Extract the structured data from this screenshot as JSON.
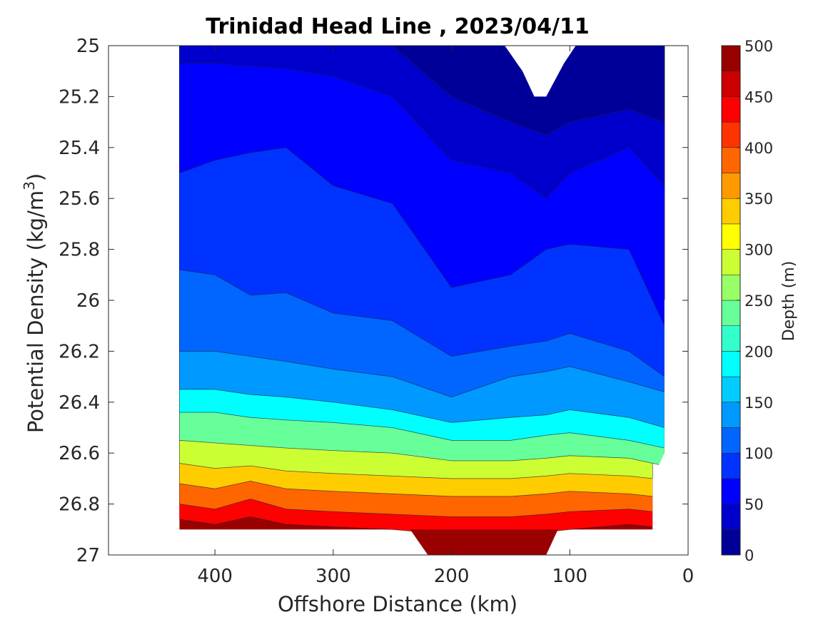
{
  "chart_data": {
    "type": "contour",
    "title": "Trinidad Head Line , 2023/04/11",
    "xlabel": "Offshore Distance (km)",
    "ylabel": "Potential Density (kg/m",
    "ylabel_superscript": "3",
    "ylabel_suffix": ")",
    "xlim": [
      490,
      0
    ],
    "xlim_reversed": true,
    "ylim": [
      25,
      27
    ],
    "ylim_reversed": true,
    "x_ticks": [
      400,
      300,
      200,
      100,
      0
    ],
    "y_ticks": [
      25,
      25.2,
      25.4,
      25.6,
      25.8,
      26,
      26.2,
      26.4,
      26.6,
      26.8,
      27
    ],
    "y_tick_labels": [
      "25",
      "25.2",
      "25.4",
      "25.6",
      "25.8",
      "26",
      "26.2",
      "26.4",
      "26.6",
      "26.8",
      "27"
    ],
    "colorbar": {
      "label": "Depth (m)",
      "min": 0,
      "max": 500,
      "step": 25,
      "ticks": [
        0,
        50,
        100,
        150,
        200,
        250,
        300,
        350,
        400,
        450,
        500
      ],
      "colormap": "jet"
    },
    "series": [
      {
        "name": "Depth contour 25 m",
        "value": 25,
        "x": [
          430,
          400,
          370,
          340,
          300,
          250,
          200,
          150,
          120,
          100,
          50,
          20
        ],
        "y": [
          25.0,
          25.0,
          25.0,
          25.0,
          25.0,
          25.0,
          25.2,
          25.3,
          25.35,
          25.3,
          25.25,
          25.3
        ]
      },
      {
        "name": "Depth contour 50 m",
        "value": 50,
        "x": [
          430,
          400,
          370,
          340,
          300,
          250,
          200,
          150,
          120,
          100,
          50,
          20
        ],
        "y": [
          25.07,
          25.07,
          25.08,
          25.09,
          25.12,
          25.2,
          25.45,
          25.5,
          25.6,
          25.5,
          25.4,
          25.55
        ]
      },
      {
        "name": "Depth contour 75 m",
        "value": 75,
        "x": [
          430,
          400,
          370,
          340,
          300,
          250,
          200,
          150,
          120,
          100,
          50,
          20
        ],
        "y": [
          25.5,
          25.45,
          25.42,
          25.4,
          25.55,
          25.62,
          25.95,
          25.9,
          25.8,
          25.78,
          25.8,
          26.1
        ]
      },
      {
        "name": "Depth contour 100 m",
        "value": 100,
        "x": [
          430,
          400,
          370,
          340,
          300,
          250,
          200,
          150,
          120,
          100,
          50,
          20
        ],
        "y": [
          25.88,
          25.9,
          25.98,
          25.97,
          26.05,
          26.08,
          26.22,
          26.18,
          26.16,
          26.13,
          26.2,
          26.3
        ]
      },
      {
        "name": "Depth contour 125 m",
        "value": 125,
        "x": [
          430,
          400,
          370,
          340,
          300,
          250,
          200,
          150,
          120,
          100,
          50,
          20
        ],
        "y": [
          26.2,
          26.2,
          26.22,
          26.24,
          26.27,
          26.3,
          26.38,
          26.3,
          26.28,
          26.26,
          26.32,
          26.36
        ]
      },
      {
        "name": "Depth contour 150 m",
        "value": 150,
        "x": [
          430,
          400,
          370,
          340,
          300,
          250,
          200,
          150,
          120,
          100,
          50,
          20
        ],
        "y": [
          26.35,
          26.35,
          26.37,
          26.38,
          26.4,
          26.43,
          26.48,
          26.46,
          26.45,
          26.43,
          26.46,
          26.5
        ]
      },
      {
        "name": "Depth contour 200 m",
        "value": 200,
        "x": [
          430,
          400,
          370,
          340,
          300,
          250,
          200,
          150,
          120,
          100,
          50,
          20
        ],
        "y": [
          26.44,
          26.44,
          26.46,
          26.47,
          26.48,
          26.5,
          26.55,
          26.55,
          26.53,
          26.52,
          26.55,
          26.58
        ]
      },
      {
        "name": "Depth contour 250 m",
        "value": 250,
        "x": [
          430,
          400,
          370,
          340,
          300,
          250,
          200,
          150,
          120,
          100,
          50,
          20
        ],
        "y": [
          26.55,
          26.56,
          26.57,
          26.58,
          26.59,
          26.6,
          26.63,
          26.63,
          26.62,
          26.61,
          26.62,
          26.65
        ]
      },
      {
        "name": "Depth contour 300 m",
        "value": 300,
        "x": [
          430,
          400,
          370,
          340,
          300,
          250,
          200,
          150,
          120,
          100,
          50,
          30
        ],
        "y": [
          26.64,
          26.66,
          26.65,
          26.67,
          26.68,
          26.69,
          26.7,
          26.7,
          26.69,
          26.68,
          26.69,
          26.7
        ]
      },
      {
        "name": "Depth contour 350 m",
        "value": 350,
        "x": [
          430,
          400,
          370,
          340,
          300,
          250,
          200,
          150,
          120,
          100,
          50,
          30
        ],
        "y": [
          26.72,
          26.74,
          26.71,
          26.74,
          26.75,
          26.76,
          26.77,
          26.77,
          26.76,
          26.75,
          26.76,
          26.77
        ]
      },
      {
        "name": "Depth contour 400 m",
        "value": 400,
        "x": [
          430,
          400,
          370,
          340,
          300,
          250,
          200,
          150,
          120,
          100,
          50,
          30
        ],
        "y": [
          26.8,
          26.82,
          26.78,
          26.82,
          26.83,
          26.84,
          26.85,
          26.85,
          26.84,
          26.83,
          26.82,
          26.83
        ]
      },
      {
        "name": "Depth contour 450 m",
        "value": 450,
        "x": [
          430,
          400,
          370,
          340,
          300,
          250,
          200,
          150,
          120,
          100,
          50,
          30
        ],
        "y": [
          26.86,
          26.88,
          26.85,
          26.88,
          26.89,
          26.9,
          26.92,
          26.92,
          26.91,
          26.9,
          26.88,
          26.89
        ]
      }
    ]
  }
}
